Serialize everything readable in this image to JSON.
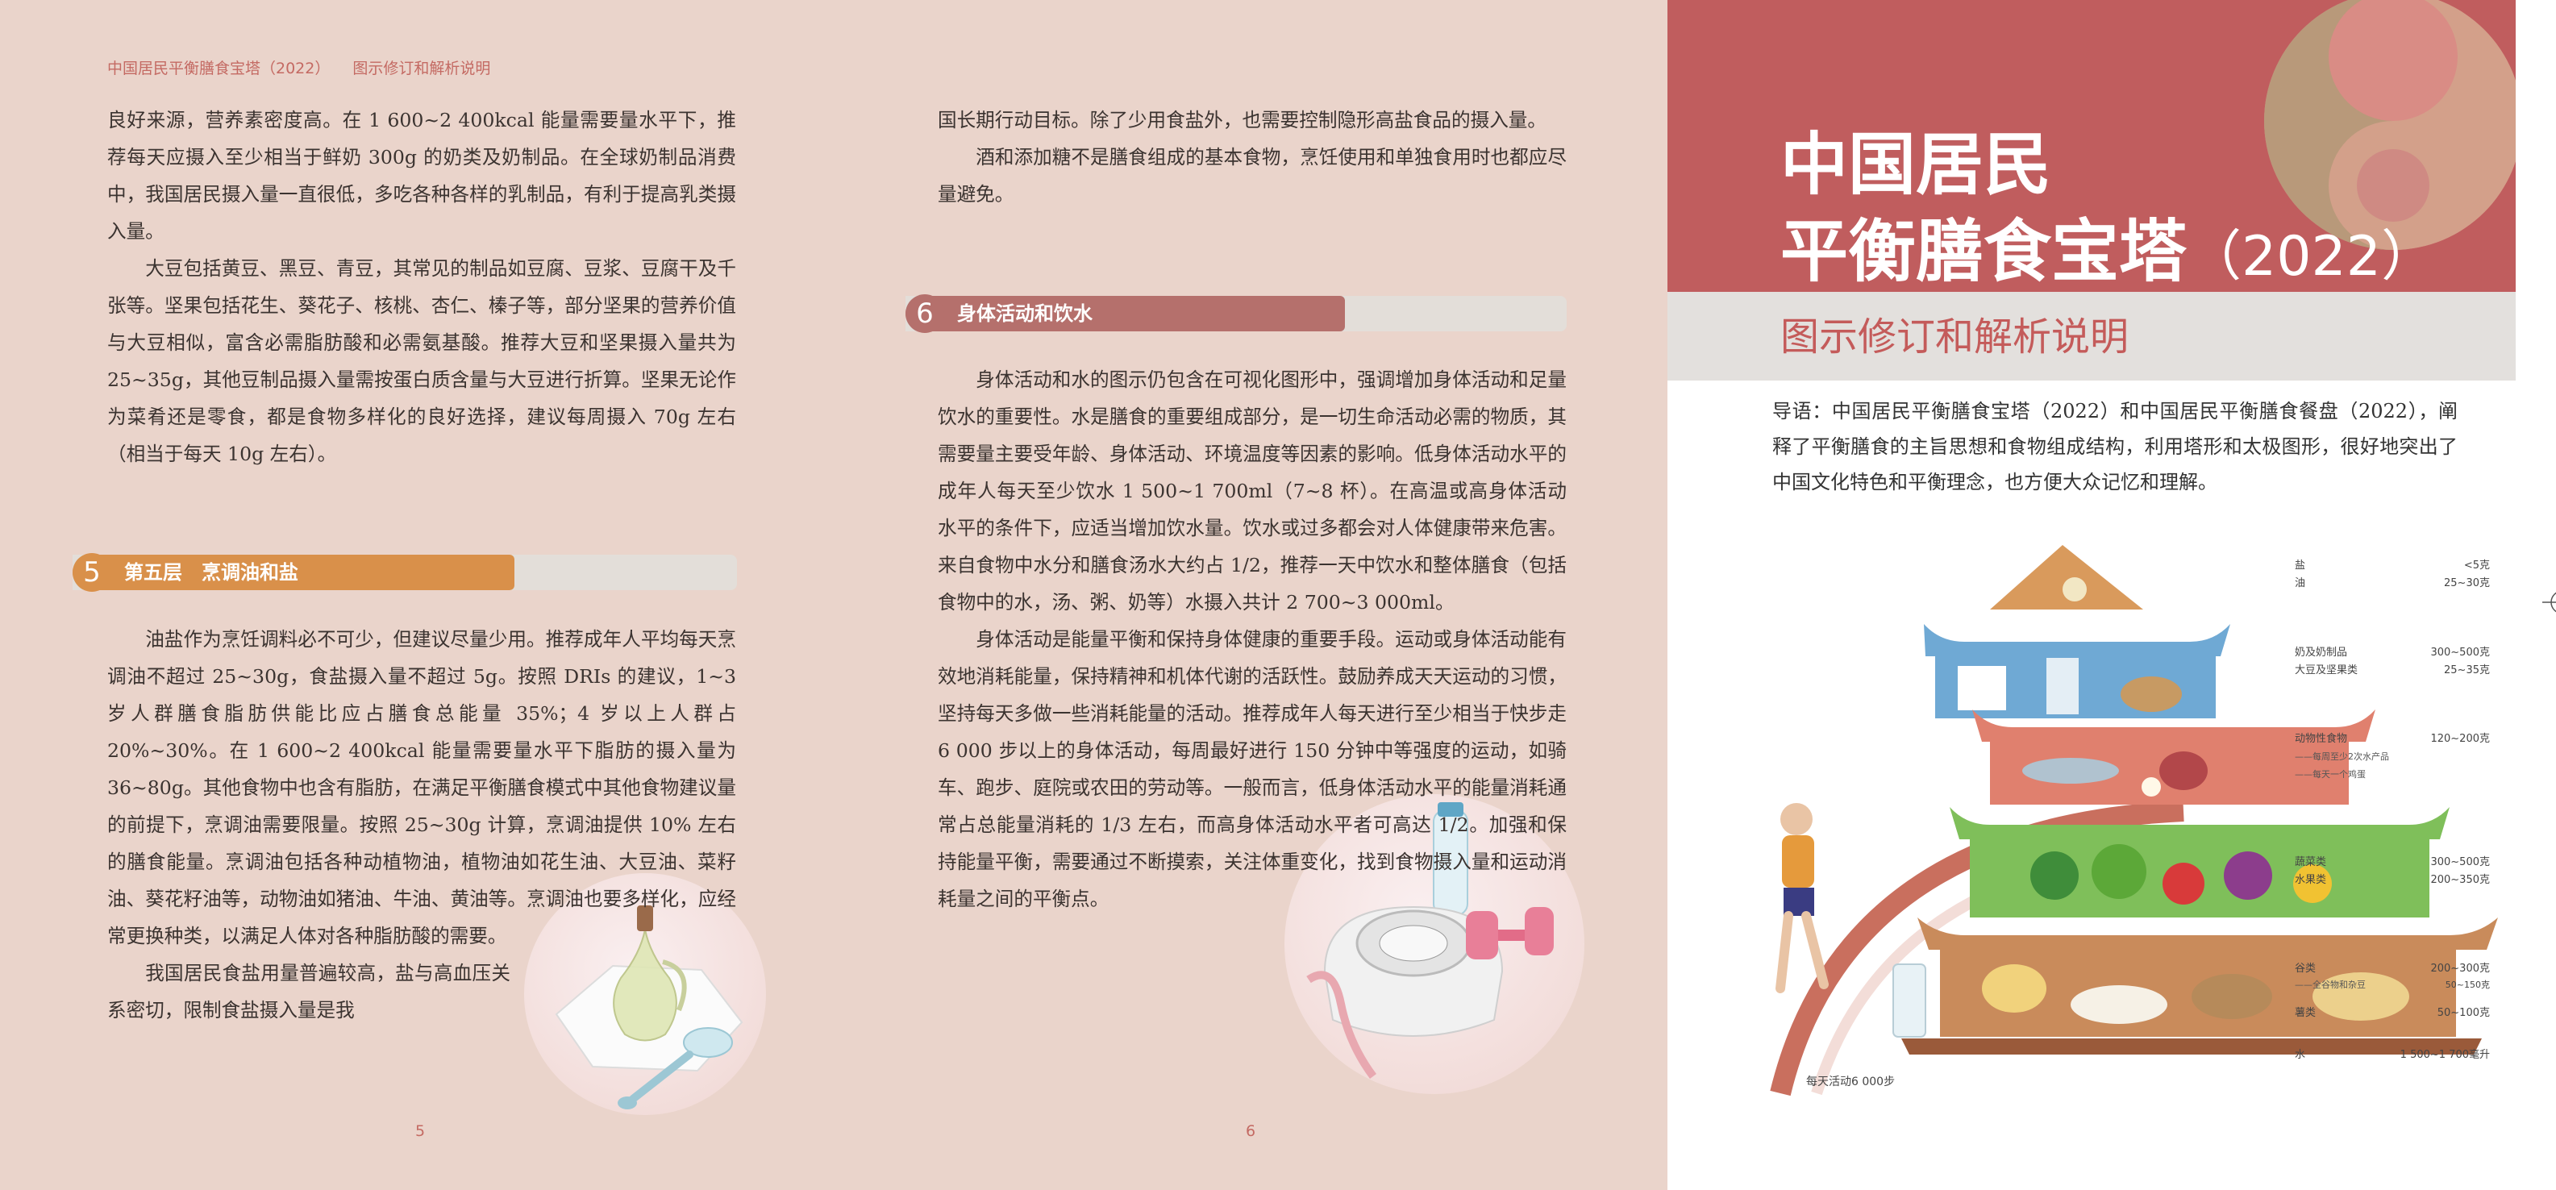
{
  "header": {
    "book_title": "中国居民平衡膳食宝塔（2022）",
    "book_subtitle": "图示修订和解析说明"
  },
  "page5": {
    "paragraphs_top": [
      "良好来源，营养素密度高。在 1 600~2 400kcal 能量需要量水平下，推荐每天应摄入至少相当于鲜奶 300g 的奶类及奶制品。在全球奶制品消费中，我国居民摄入量一直很低，多吃各种各样的乳制品，有利于提高乳类摄入量。",
      "大豆包括黄豆、黑豆、青豆，其常见的制品如豆腐、豆浆、豆腐干及千张等。坚果包括花生、葵花子、核桃、杏仁、榛子等，部分坚果的营养价值与大豆相似，富含必需脂肪酸和必需氨基酸。推荐大豆和坚果摄入量共为 25~35g，其他豆制品摄入量需按蛋白质含量与大豆进行折算。坚果无论作为菜肴还是零食，都是食物多样化的良好选择，建议每周摄入 70g 左右（相当于每天 10g 左右）。"
    ],
    "section": {
      "number": "5",
      "title": "第五层　烹调油和盐"
    },
    "paragraphs_bottom": [
      "油盐作为烹饪调料必不可少，但建议尽量少用。推荐成年人平均每天烹调油不超过 25~30g，食盐摄入量不超过 5g。按照 DRIs 的建议，1~3 岁人群膳食脂肪供能比应占膳食总能量 35%；4 岁以上人群占 20%~30%。在 1 600~2 400kcal 能量需要量水平下脂肪的摄入量为 36~80g。其他食物中也含有脂肪，在满足平衡膳食模式中其他食物建议量的前提下，烹调油需要限量。按照 25~30g 计算，烹调油提供 10% 左右的膳食能量。烹调油包括各种动植物油，植物油如花生油、大豆油、菜籽油、葵花籽油等，动物油如猪油、牛油、黄油等。烹调油也要多样化，应经常更换种类，以满足人体对各种脂肪酸的需要。",
      "我国居民食盐用量普遍较高，盐与高血压关系密切，限制食盐摄入量是我"
    ],
    "page_number": "5"
  },
  "page6": {
    "paragraphs_top": [
      "国长期行动目标。除了少用食盐外，也需要控制隐形高盐食品的摄入量。",
      "酒和添加糖不是膳食组成的基本食物，烹饪使用和单独食用时也都应尽量避免。"
    ],
    "section": {
      "number": "6",
      "title": "身体活动和饮水"
    },
    "paragraphs_bottom": [
      "身体活动和水的图示仍包含在可视化图形中，强调增加身体活动和足量饮水的重要性。水是膳食的重要组成部分，是一切生命活动必需的物质，其需要量主要受年龄、身体活动、环境温度等因素的影响。低身体活动水平的成年人每天至少饮水 1 500~1 700ml（7~8 杯）。在高温或高身体活动水平的条件下，应适当增加饮水量。饮水或过多都会对人体健康带来危害。来自食物中水分和膳食汤水大约占 1/2，推荐一天中饮水和整体膳食（包括食物中的水，汤、粥、奶等）水摄入共计 2 700~3 000ml。",
      "身体活动是能量平衡和保持身体健康的重要手段。运动或身体活动能有效地消耗能量，保持精神和机体代谢的活跃性。鼓励养成天天运动的习惯，坚持每天多做一些消耗能量的活动。推荐成年人每天进行至少相当于快步走 6 000 步以上的身体活动，每周最好进行 150 分钟中等强度的运动，如骑车、跑步、庭院或农田的劳动等。一般而言，低身体活动水平的能量消耗通常占总能量消耗的 1/3 左右，而高身体活动水平者可高达 1/2。加强和保持能量平衡，需要通过不断摸索，关注体重变化，找到食物摄入量和运动消耗量之间的平衡点。"
    ],
    "page_number": "6"
  },
  "cover": {
    "title_line1": "中国居民",
    "title_line2": "平衡膳食宝塔",
    "title_year": "（2022）",
    "subtitle": "图示修订和解析说明",
    "intro": "导语：中国居民平衡膳食宝塔（2022）和中国居民平衡膳食餐盘（2022），阐释了平衡膳食的主旨思想和食物组成结构，利用塔形和太极图形，很好地突出了中国文化特色和平衡理念，也方便大众记忆和理解。",
    "pagoda": {
      "tiers": [
        {
          "label": "盐",
          "value": "<5克"
        },
        {
          "label": "油",
          "value": "25~30克"
        },
        {
          "label": "奶及奶制品",
          "value": "300~500克"
        },
        {
          "label": "大豆及坚果类",
          "value": "25~35克"
        },
        {
          "label": "动物性食物",
          "value": "120~200克"
        },
        {
          "label": "——每周至少2次水产品",
          "value": ""
        },
        {
          "label": "——每天一个鸡蛋",
          "value": ""
        },
        {
          "label": "蔬菜类",
          "value": "300~500克"
        },
        {
          "label": "水果类",
          "value": "200~350克"
        },
        {
          "label": "谷类",
          "value": "200~300克"
        },
        {
          "label": "——全谷物和杂豆",
          "value": "50~150克"
        },
        {
          "label": "薯类",
          "value": "50~100克"
        },
        {
          "label": "水",
          "value": "1 500~1 700毫升"
        }
      ],
      "steps_label": "每天活动6 000步"
    }
  },
  "colors": {
    "page_bg": "#ead4cb",
    "accent_red": "#c05d5e",
    "section5_orange": "#d9904a",
    "section6_rose": "#b5706c"
  }
}
